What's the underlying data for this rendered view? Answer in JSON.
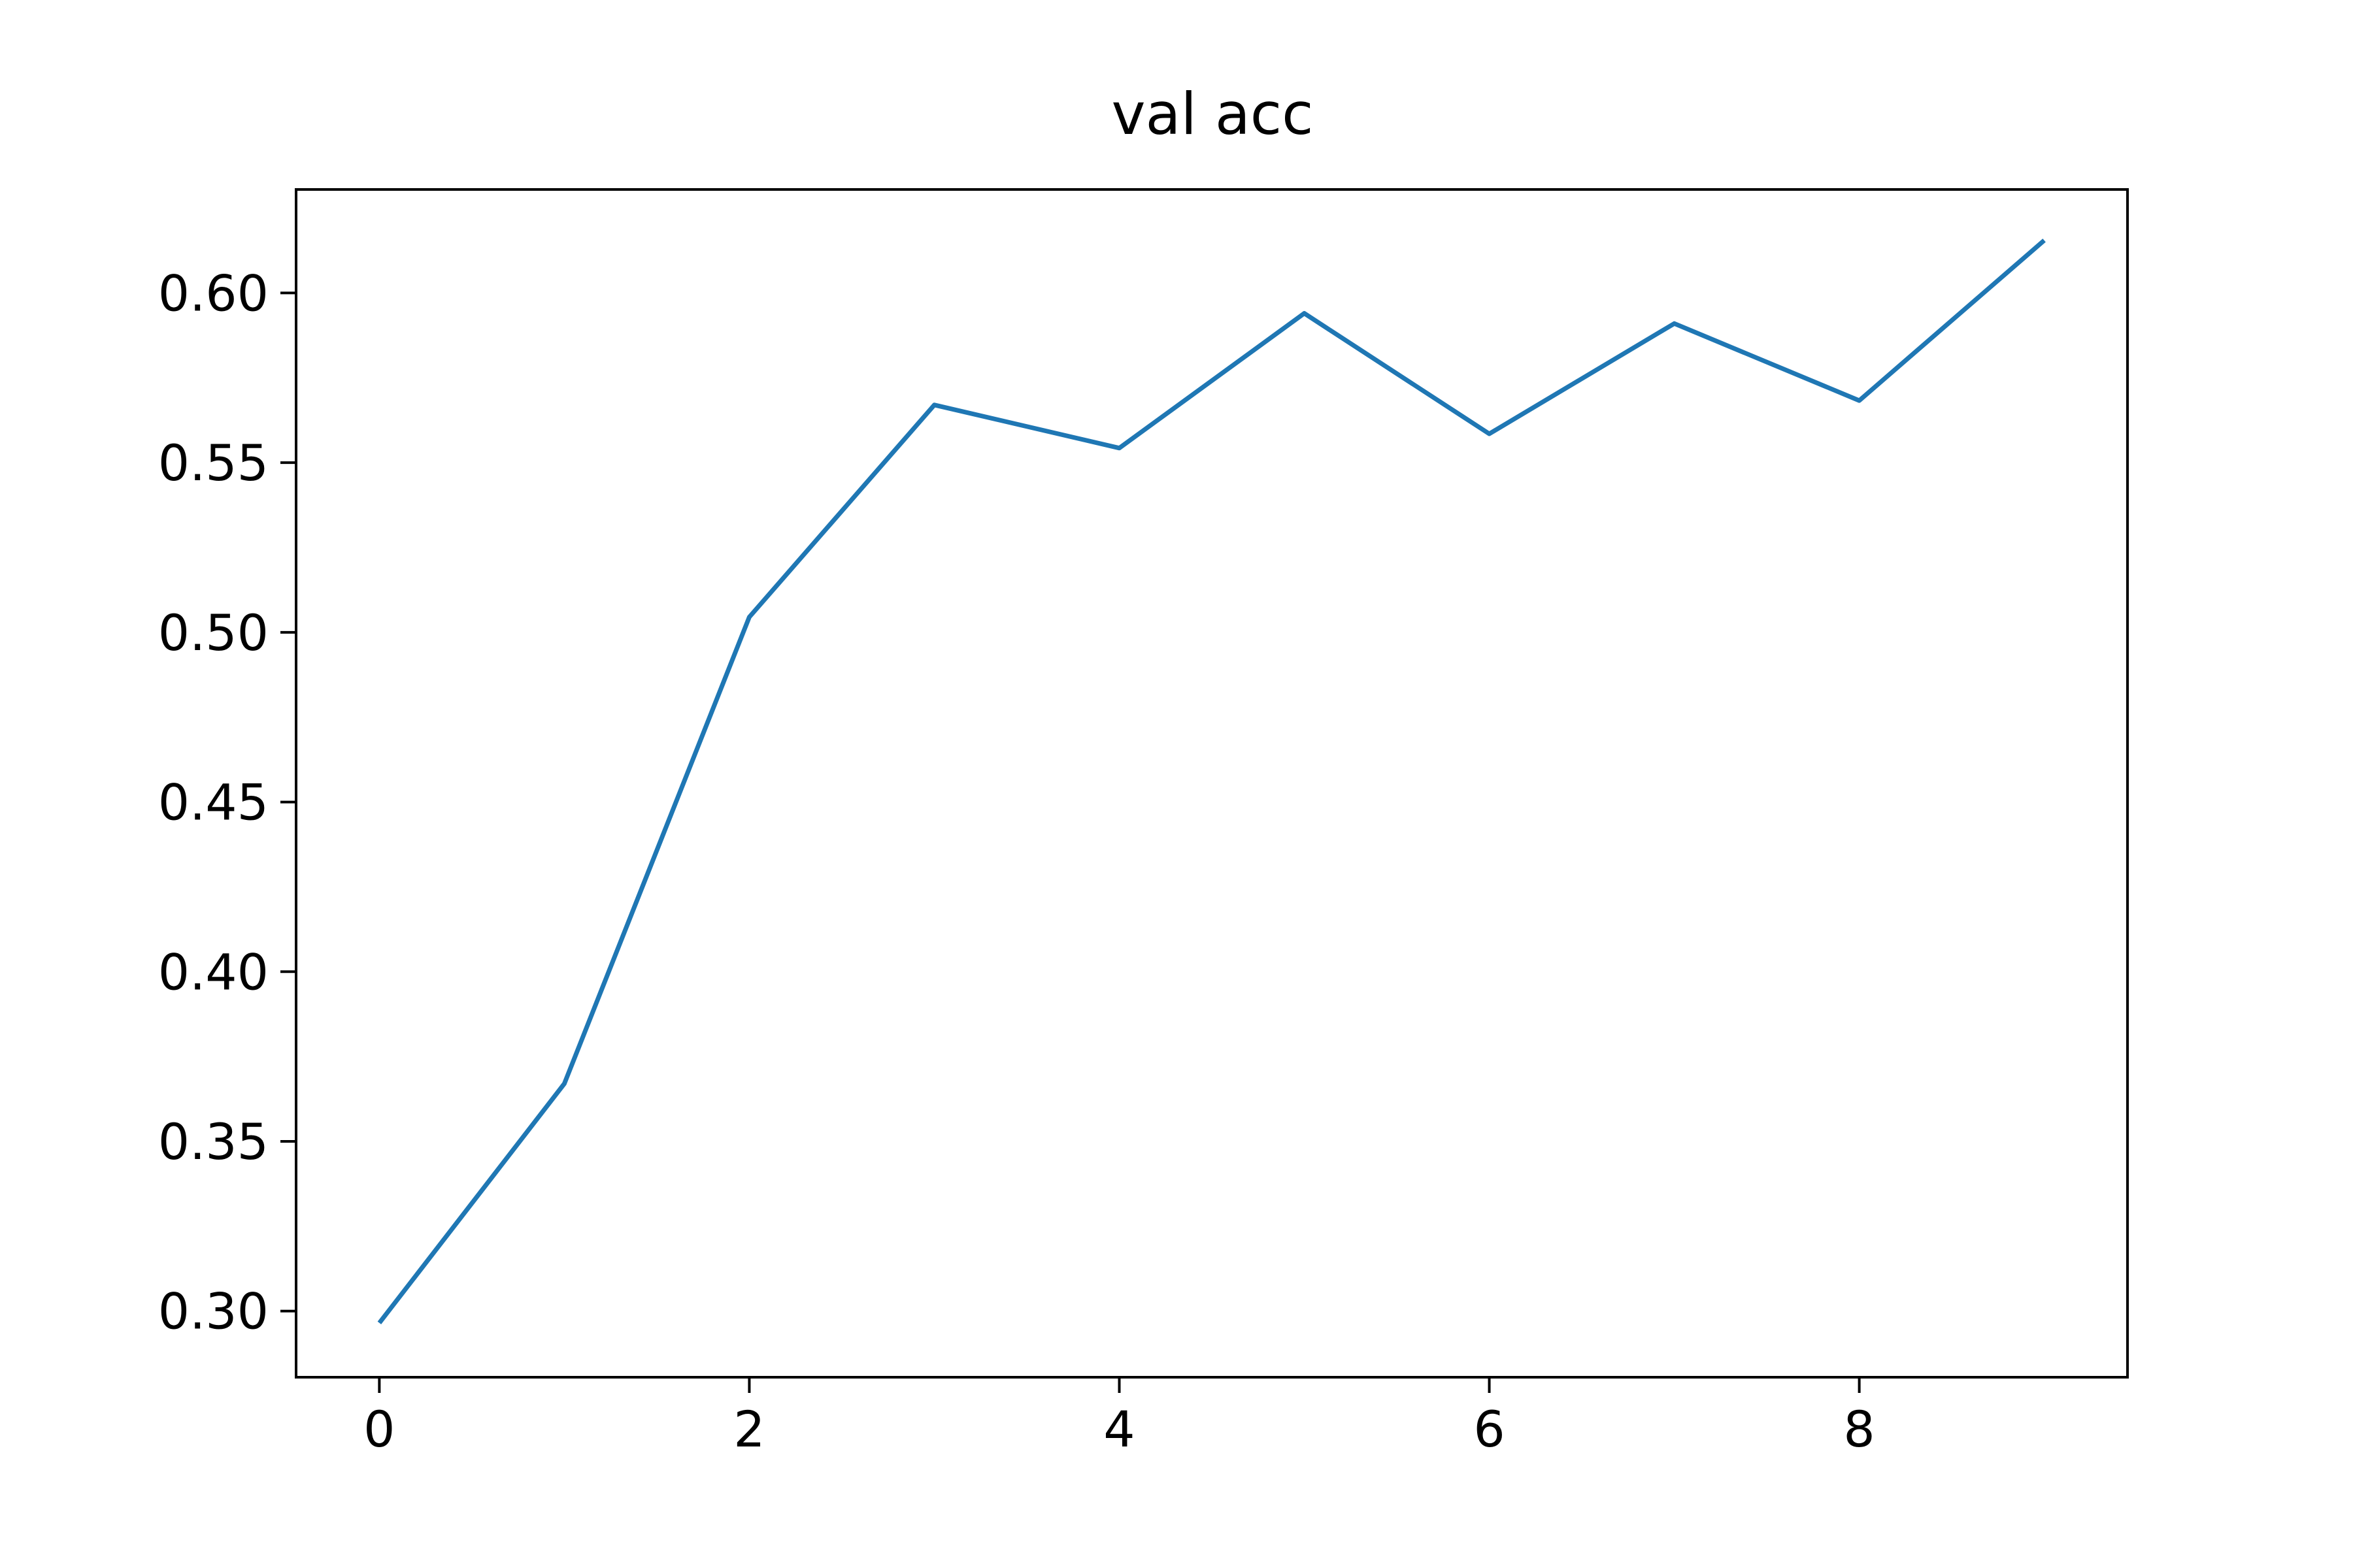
{
  "chart_data": {
    "type": "line",
    "title": "val acc",
    "xlabel": "",
    "ylabel": "",
    "xlim": [
      -0.45,
      9.45
    ],
    "ylim": [
      0.2805,
      0.6305
    ],
    "xticks": [
      0,
      2,
      4,
      6,
      8
    ],
    "xtick_labels": [
      "0",
      "2",
      "4",
      "6",
      "8"
    ],
    "yticks": [
      0.3,
      0.35,
      0.4,
      0.45,
      0.5,
      0.55,
      0.6
    ],
    "ytick_labels": [
      "0.30",
      "0.35",
      "0.40",
      "0.45",
      "0.50",
      "0.55",
      "0.60"
    ],
    "grid": false,
    "legend": false,
    "series": [
      {
        "color": "#1f77b4",
        "x": [
          0,
          1,
          2,
          3,
          4,
          5,
          6,
          7,
          8,
          9
        ],
        "values": [
          0.2965,
          0.367,
          0.5045,
          0.567,
          0.5543,
          0.594,
          0.5585,
          0.591,
          0.5683,
          0.6155
        ]
      }
    ]
  }
}
